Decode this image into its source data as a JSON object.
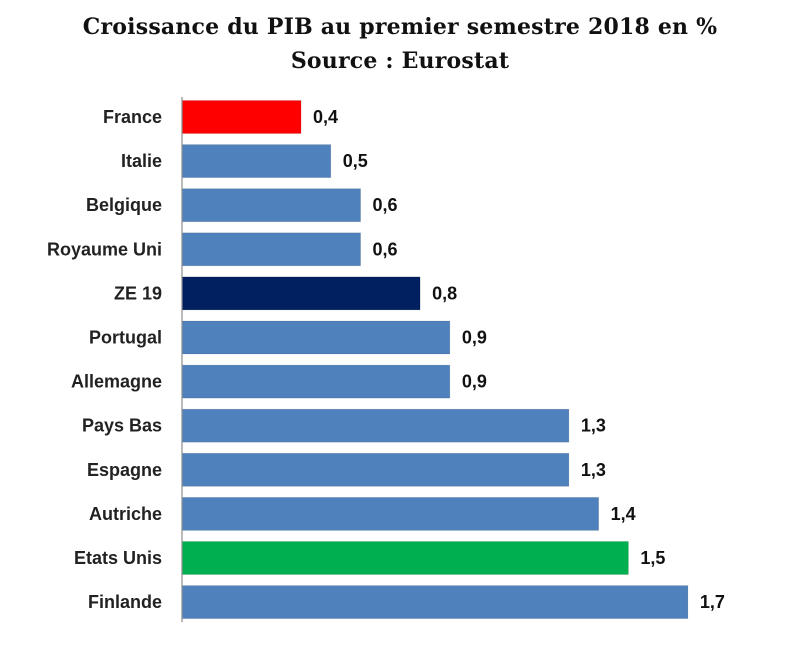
{
  "chart_data": {
    "type": "bar",
    "orientation": "horizontal",
    "title": "Croissance du PIB au premier semestre 2018 en %",
    "subtitle": "Source : Eurostat",
    "categories": [
      "France",
      "Italie",
      "Belgique",
      "Royaume Uni",
      "ZE 19",
      "Portugal",
      "Allemagne",
      "Pays Bas",
      "Espagne",
      "Autriche",
      "Etats Unis",
      "Finlande"
    ],
    "values": [
      0.4,
      0.5,
      0.6,
      0.6,
      0.8,
      0.9,
      0.9,
      1.3,
      1.3,
      1.4,
      1.5,
      1.7
    ],
    "value_labels": [
      "0,4",
      "0,5",
      "0,6",
      "0,6",
      "0,8",
      "0,9",
      "0,9",
      "1,3",
      "1,3",
      "1,4",
      "1,5",
      "1,7"
    ],
    "bar_colors": [
      "#ff0000",
      "#4f81bd",
      "#4f81bd",
      "#4f81bd",
      "#002060",
      "#4f81bd",
      "#4f81bd",
      "#4f81bd",
      "#4f81bd",
      "#4f81bd",
      "#00b050",
      "#4f81bd"
    ],
    "xlabel": "",
    "ylabel": "",
    "xlim": [
      0,
      1.7
    ],
    "grid": false,
    "legend": "none"
  }
}
